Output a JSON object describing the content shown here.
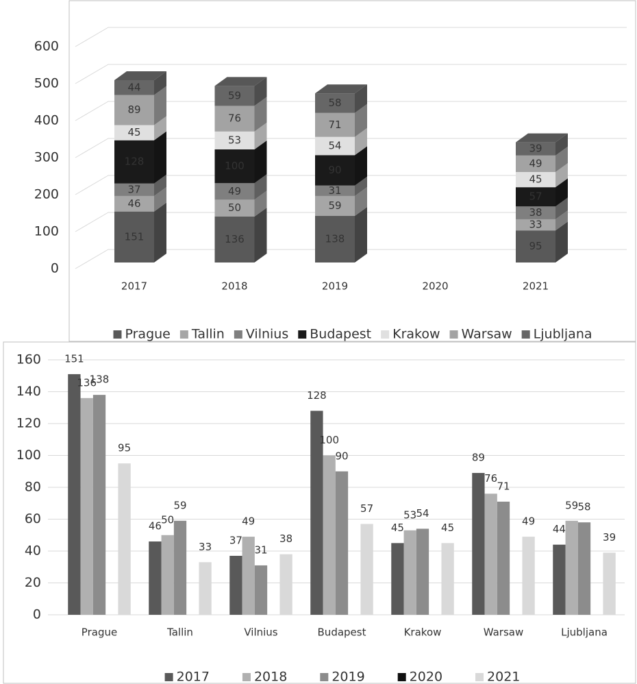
{
  "chart_data": [
    {
      "type": "stacked-bar-3d",
      "categories": [
        "2017",
        "2018",
        "2019",
        "2020",
        "2021"
      ],
      "series": [
        {
          "name": "Prague",
          "color": "#595959",
          "values": [
            151,
            136,
            138,
            null,
            95
          ]
        },
        {
          "name": "Tallin",
          "color": "#a6a6a6",
          "values": [
            46,
            50,
            59,
            null,
            33
          ]
        },
        {
          "name": "Vilnius",
          "color": "#7f7f7f",
          "values": [
            37,
            49,
            31,
            null,
            38
          ]
        },
        {
          "name": "Budapest",
          "color": "#1a1a1a",
          "values": [
            128,
            100,
            90,
            null,
            57
          ]
        },
        {
          "name": "Krakow",
          "color": "#e0e0e0",
          "values": [
            45,
            53,
            54,
            null,
            45
          ]
        },
        {
          "name": "Warsaw",
          "color": "#a3a3a3",
          "values": [
            89,
            76,
            71,
            null,
            49
          ]
        },
        {
          "name": "Ljubljana",
          "color": "#666666",
          "values": [
            44,
            59,
            58,
            null,
            39
          ]
        }
      ],
      "ylim": [
        0,
        600
      ],
      "yticks": [
        0,
        100,
        200,
        300,
        400,
        500,
        600
      ],
      "grid": true,
      "legend": "bottom"
    },
    {
      "type": "grouped-bar",
      "categories": [
        "Prague",
        "Tallin",
        "Vilnius",
        "Budapest",
        "Krakow",
        "Warsaw",
        "Ljubljana"
      ],
      "series": [
        {
          "name": "2017",
          "color": "#595959",
          "values": [
            151,
            46,
            37,
            128,
            45,
            89,
            44
          ]
        },
        {
          "name": "2018",
          "color": "#b0b0b0",
          "values": [
            136,
            50,
            49,
            100,
            53,
            76,
            59
          ]
        },
        {
          "name": "2019",
          "color": "#8c8c8c",
          "values": [
            138,
            59,
            31,
            90,
            54,
            71,
            58
          ]
        },
        {
          "name": "2020",
          "color": "#111111",
          "values": [
            null,
            null,
            null,
            null,
            null,
            null,
            null
          ]
        },
        {
          "name": "2021",
          "color": "#d9d9d9",
          "values": [
            95,
            33,
            38,
            57,
            45,
            49,
            39
          ]
        }
      ],
      "ylim": [
        0,
        160
      ],
      "yticks": [
        0,
        20,
        40,
        60,
        80,
        100,
        120,
        140,
        160
      ],
      "grid": true,
      "legend": "bottom"
    }
  ]
}
